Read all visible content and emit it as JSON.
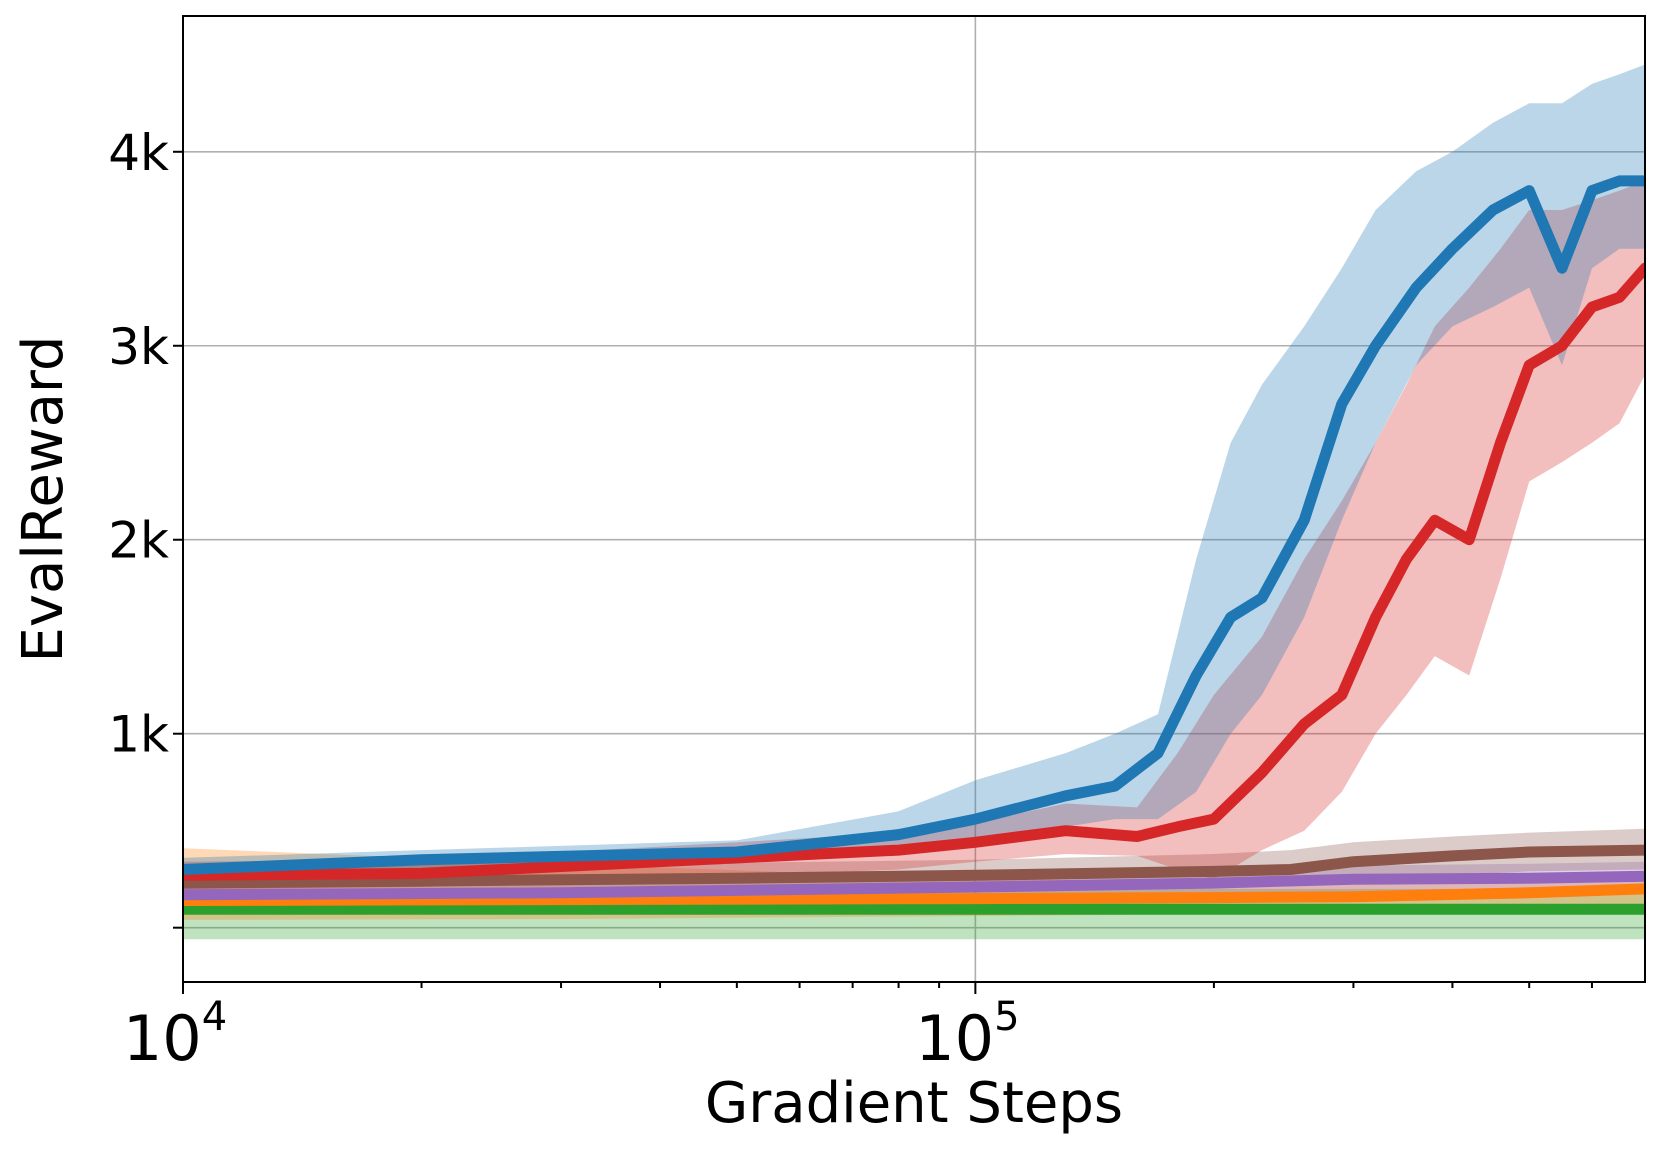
{
  "chart_data": {
    "type": "line",
    "xlabel": "Gradient Steps",
    "ylabel": "EvalReward",
    "xscale": "log",
    "xlim": [
      10000,
      700000
    ],
    "ylim": [
      -280,
      4700
    ],
    "grid": true,
    "x_ticks": [
      {
        "value": 10000,
        "base": "10",
        "exp": "4"
      },
      {
        "value": 100000,
        "base": "10",
        "exp": "5"
      }
    ],
    "y_ticks": [
      {
        "value": 0,
        "label": ""
      },
      {
        "value": 1000,
        "label": "1k"
      },
      {
        "value": 2000,
        "label": "2k"
      },
      {
        "value": 3000,
        "label": "3k"
      },
      {
        "value": 4000,
        "label": "4k"
      }
    ],
    "series": [
      {
        "color": "#2ca02c",
        "band_opacity": 0.3,
        "x": [
          10000,
          30000,
          100000,
          300000,
          700000
        ],
        "y": [
          95,
          95,
          95,
          95,
          95
        ],
        "lower": [
          -60,
          -60,
          -60,
          -60,
          -60
        ],
        "upper": [
          200,
          200,
          200,
          200,
          200
        ]
      },
      {
        "color": "#ff7f0e",
        "band_opacity": 0.3,
        "x": [
          10000,
          30000,
          100000,
          200000,
          300000,
          500000,
          700000
        ],
        "y": [
          140,
          145,
          150,
          155,
          160,
          180,
          200
        ],
        "lower": [
          40,
          45,
          60,
          70,
          80,
          100,
          120
        ],
        "upper": [
          410,
          330,
          250,
          240,
          240,
          270,
          290
        ]
      },
      {
        "color": "#9467bd",
        "band_opacity": 0.3,
        "x": [
          10000,
          30000,
          100000,
          200000,
          300000,
          500000,
          700000
        ],
        "y": [
          170,
          180,
          210,
          230,
          250,
          255,
          265
        ],
        "lower": [
          90,
          110,
          140,
          160,
          180,
          190,
          200
        ],
        "upper": [
          260,
          260,
          280,
          300,
          320,
          330,
          340
        ]
      },
      {
        "color": "#8c564b",
        "band_opacity": 0.3,
        "x": [
          10000,
          20000,
          50000,
          100000,
          200000,
          250000,
          300000,
          400000,
          500000,
          700000
        ],
        "y": [
          230,
          240,
          255,
          270,
          290,
          300,
          340,
          370,
          390,
          400
        ],
        "lower": [
          150,
          160,
          175,
          190,
          210,
          220,
          250,
          270,
          290,
          300
        ],
        "upper": [
          330,
          330,
          335,
          350,
          380,
          400,
          440,
          470,
          490,
          510
        ]
      },
      {
        "color": "#d62728",
        "band_opacity": 0.3,
        "x": [
          10000,
          20000,
          50000,
          80000,
          100000,
          130000,
          160000,
          180000,
          200000,
          230000,
          260000,
          290000,
          320000,
          350000,
          380000,
          420000,
          460000,
          500000,
          550000,
          600000,
          650000,
          700000
        ],
        "y": [
          270,
          280,
          360,
          400,
          440,
          500,
          470,
          520,
          560,
          800,
          1050,
          1200,
          1600,
          1900,
          2100,
          2000,
          2500,
          2900,
          3000,
          3200,
          3250,
          3400
        ],
        "lower": [
          200,
          210,
          260,
          300,
          340,
          380,
          370,
          300,
          250,
          400,
          500,
          700,
          1000,
          1200,
          1400,
          1300,
          1800,
          2300,
          2400,
          2500,
          2600,
          2850
        ],
        "upper": [
          340,
          350,
          440,
          490,
          540,
          640,
          620,
          900,
          1200,
          1500,
          1900,
          2200,
          2500,
          2800,
          3100,
          3300,
          3500,
          3700,
          3700,
          3750,
          3800,
          3850
        ]
      },
      {
        "color": "#1f77b4",
        "band_opacity": 0.3,
        "x": [
          10000,
          20000,
          50000,
          80000,
          100000,
          130000,
          150000,
          170000,
          190000,
          210000,
          230000,
          260000,
          290000,
          320000,
          360000,
          400000,
          450000,
          500000,
          550000,
          600000,
          650000,
          700000
        ],
        "y": [
          300,
          350,
          390,
          480,
          560,
          680,
          730,
          900,
          1300,
          1600,
          1700,
          2100,
          2700,
          3000,
          3300,
          3500,
          3700,
          3800,
          3400,
          3800,
          3850,
          3850
        ],
        "lower": [
          250,
          290,
          330,
          400,
          440,
          520,
          560,
          560,
          700,
          1000,
          1200,
          1600,
          2100,
          2500,
          2900,
          3100,
          3200,
          3300,
          2900,
          3400,
          3500,
          3500
        ],
        "upper": [
          360,
          400,
          450,
          600,
          760,
          900,
          1000,
          1100,
          1900,
          2500,
          2800,
          3100,
          3400,
          3700,
          3900,
          4000,
          4150,
          4250,
          4250,
          4350,
          4400,
          4450
        ]
      }
    ]
  }
}
